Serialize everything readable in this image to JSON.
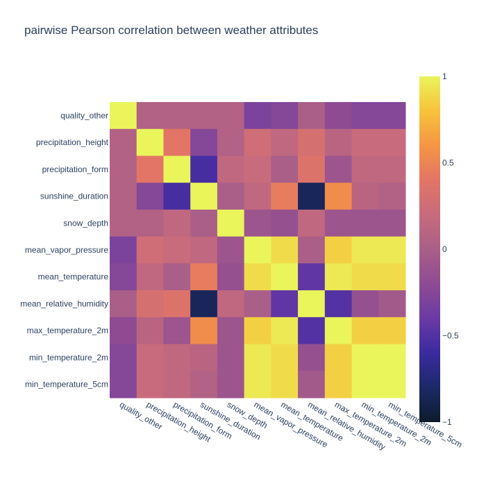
{
  "chart_data": {
    "type": "heatmap",
    "title": "pairwise Pearson correlation between weather attributes",
    "labels": [
      "quality_other",
      "precipitation_height",
      "precipitation_form",
      "sunshine_duration",
      "snow_depth",
      "mean_vapor_pressure",
      "mean_temperature",
      "mean_relative_humidity",
      "max_temperature_2m",
      "min_temperature_2m",
      "min_temperature_5cm"
    ],
    "z": [
      [
        1.0,
        0.05,
        0.05,
        0.05,
        0.05,
        -0.3,
        -0.25,
        0.0,
        -0.2,
        -0.25,
        -0.25
      ],
      [
        0.05,
        1.0,
        0.4,
        -0.25,
        0.05,
        0.25,
        0.15,
        0.3,
        0.1,
        0.2,
        0.2
      ],
      [
        0.05,
        0.4,
        1.0,
        -0.55,
        0.15,
        0.2,
        0.0,
        0.35,
        -0.1,
        0.15,
        0.15
      ],
      [
        0.05,
        -0.25,
        -0.55,
        1.0,
        0.0,
        0.15,
        0.45,
        -0.85,
        0.55,
        0.1,
        0.05
      ],
      [
        0.05,
        0.05,
        0.15,
        0.0,
        1.0,
        -0.1,
        -0.15,
        0.15,
        -0.1,
        -0.1,
        -0.1
      ],
      [
        -0.3,
        0.25,
        0.2,
        0.15,
        -0.1,
        1.0,
        0.9,
        0.0,
        0.85,
        0.95,
        0.95
      ],
      [
        -0.25,
        0.15,
        0.0,
        0.45,
        -0.15,
        0.9,
        1.0,
        -0.45,
        0.95,
        0.9,
        0.9
      ],
      [
        0.0,
        0.3,
        0.35,
        -0.85,
        0.15,
        0.0,
        -0.45,
        1.0,
        -0.5,
        -0.15,
        -0.05
      ],
      [
        -0.2,
        0.1,
        -0.1,
        0.55,
        -0.1,
        0.85,
        0.95,
        -0.5,
        1.0,
        0.85,
        0.85
      ],
      [
        -0.25,
        0.2,
        0.15,
        0.1,
        -0.1,
        0.95,
        0.9,
        -0.15,
        0.85,
        1.0,
        1.0
      ],
      [
        -0.25,
        0.2,
        0.15,
        0.05,
        -0.1,
        0.95,
        0.9,
        -0.05,
        0.85,
        1.0,
        1.0
      ]
    ],
    "zrange": [
      -1,
      1
    ],
    "colorbar_ticks": [
      {
        "value": 1,
        "label": "1"
      },
      {
        "value": 0.5,
        "label": "0.5"
      },
      {
        "value": 0,
        "label": "0"
      },
      {
        "value": -0.5,
        "label": "−0.5"
      },
      {
        "value": -1,
        "label": "−1"
      }
    ],
    "colorscale": [
      [
        0.0,
        "#0d1b2a"
      ],
      [
        0.1,
        "#1b2a68"
      ],
      [
        0.2,
        "#3a2aa0"
      ],
      [
        0.3,
        "#6b3aa5"
      ],
      [
        0.4,
        "#8e4b92"
      ],
      [
        0.5,
        "#a95f88"
      ],
      [
        0.6,
        "#c86b7c"
      ],
      [
        0.7,
        "#e27566"
      ],
      [
        0.8,
        "#f59545"
      ],
      [
        0.9,
        "#f6c33b"
      ],
      [
        1.0,
        "#eaf55c"
      ]
    ]
  }
}
